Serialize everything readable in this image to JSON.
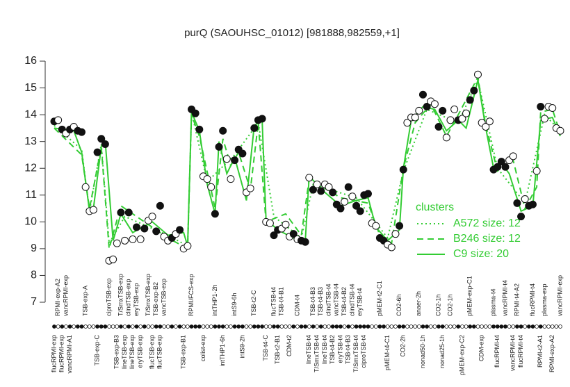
{
  "chart_data": {
    "type": "line",
    "title": "purQ (SAOUHSC_01012) [981888,982559,+1]",
    "ylim": [
      7,
      16
    ],
    "yticks": [
      7,
      8,
      9,
      10,
      11,
      12,
      13,
      14,
      15,
      16
    ],
    "categories": [
      "flucRPMI-exp",
      "RPMI-exp-A2",
      "flucRPMI-exp",
      "vancRPMI-exp",
      "vancRPMI-A1",
      null,
      null,
      null,
      "TSB-exp-A",
      null,
      null,
      "TSB-exp-C",
      null,
      null,
      "ciproTSB-exp",
      null,
      "TSB-exp-B3",
      "T/SmxTSB-exp",
      "lineTSB-exp",
      "clindTSB-exp",
      "lineTSB-exp",
      "eryTSB-exp",
      "eryTSB-exp",
      null,
      "T/SmxTSB-exp",
      "flucTSB-exp",
      "TSB-exp-B2",
      "flucTSB-exp",
      "vancTSB-exp",
      null,
      null,
      null,
      null,
      "TSB-exp-B1",
      null,
      "RPMI/FCS-exp",
      null,
      null,
      "colist-exp",
      null,
      null,
      "intTHP1-2h",
      null,
      "intTHP1-6h",
      null,
      null,
      "intS9-6h",
      null,
      "intS9-2h",
      null,
      null,
      "TSB-t2-C",
      null,
      null,
      "TSB-t4-C",
      null,
      "flucTSB-t4",
      "TSB-t2-B1",
      "TSB-t4-B1",
      null,
      "CDM-t2",
      null,
      "CDM-t4",
      null,
      null,
      "lineTSB-t4",
      "TSB-t4-B3",
      "T/SmxTSB-t4",
      "TSB-t4-B3",
      "lineTSB-t4",
      "clindTSB-t4",
      "TSB-t4-B2",
      "vancTSB-t4",
      "eryTSB-t4",
      "TSB-t4-B2",
      "TSB-t4-B3",
      "clindTSB-t4",
      "T/SmxTSB-t4",
      "eryTSB-t4",
      "ciproTSB-t4",
      null,
      null,
      null,
      "pMEM-t2-C1",
      null,
      "pMEM-t4-C1",
      null,
      null,
      "CO2-6h",
      "CO2-2h",
      null,
      null,
      null,
      "anaer-2h",
      "nonad50-1h",
      null,
      null,
      null,
      "CO2-1h",
      "nonad25-1h",
      null,
      "CO2-1h",
      null,
      null,
      "pMEM-exp-C2",
      null,
      "pMEM-exp-C1",
      null,
      null,
      "CDM-exp",
      null,
      null,
      "plasma-t4",
      "flucRPMI-t4",
      null,
      "vancRPMI-t4",
      null,
      "vancRPMI-t4",
      "RPMI-t4-A2",
      "flucRPMI-t4",
      null,
      null,
      "flucRPMI-t4",
      null,
      "RPMI-t2-A1",
      "plasma-exp",
      null,
      "RPMI-exp-A2",
      null,
      "vancRPMI-exp"
    ],
    "values": [
      13.75,
      13.8,
      13.45,
      13.3,
      13.45,
      13.55,
      13.4,
      13.35,
      11.3,
      10.4,
      10.45,
      12.6,
      13.1,
      12.9,
      8.55,
      8.6,
      9.2,
      10.35,
      9.3,
      10.35,
      9.35,
      9.8,
      9.35,
      9.75,
      10.05,
      10.2,
      9.65,
      10.6,
      9.45,
      9.3,
      9.4,
      9.55,
      9.7,
      9.0,
      9.1,
      14.2,
      14.05,
      13.45,
      11.7,
      11.6,
      11.3,
      10.3,
      12.8,
      13.4,
      12.35,
      11.6,
      12.3,
      12.7,
      12.55,
      11.1,
      11.25,
      13.5,
      13.8,
      13.85,
      10.0,
      9.95,
      9.5,
      9.7,
      9.75,
      9.9,
      9.45,
      9.55,
      9.35,
      9.3,
      9.25,
      11.65,
      11.2,
      11.4,
      11.15,
      11.4,
      11.3,
      11.1,
      10.65,
      10.5,
      10.75,
      11.3,
      10.95,
      10.6,
      10.4,
      11.0,
      11.05,
      9.95,
      9.85,
      9.4,
      9.3,
      9.15,
      9.05,
      9.55,
      9.85,
      11.95,
      13.7,
      13.9,
      13.9,
      14.15,
      14.75,
      14.3,
      14.5,
      14.4,
      13.55,
      14.15,
      13.15,
      13.8,
      14.2,
      13.8,
      13.85,
      14.05,
      14.55,
      14.9,
      15.5,
      13.7,
      13.55,
      13.75,
      11.95,
      12.05,
      12.25,
      12.05,
      12.3,
      12.45,
      10.7,
      10.2,
      10.85,
      10.6,
      10.65,
      11.9,
      14.3,
      13.85,
      14.3,
      14.25,
      13.5,
      13.4
    ],
    "filled": [
      true,
      false,
      true,
      false,
      true,
      false,
      true,
      true,
      false,
      false,
      false,
      true,
      true,
      true,
      false,
      false,
      false,
      true,
      false,
      true,
      false,
      true,
      false,
      true,
      false,
      false,
      true,
      true,
      false,
      false,
      true,
      false,
      true,
      false,
      false,
      true,
      true,
      true,
      false,
      false,
      false,
      true,
      true,
      true,
      false,
      false,
      true,
      true,
      true,
      false,
      false,
      true,
      true,
      true,
      false,
      false,
      true,
      true,
      false,
      false,
      false,
      true,
      false,
      true,
      true,
      false,
      true,
      false,
      true,
      false,
      false,
      true,
      true,
      true,
      false,
      true,
      false,
      true,
      true,
      true,
      true,
      false,
      false,
      true,
      true,
      false,
      false,
      false,
      true,
      true,
      false,
      false,
      false,
      false,
      true,
      true,
      false,
      false,
      true,
      true,
      false,
      false,
      false,
      true,
      false,
      false,
      true,
      true,
      false,
      false,
      false,
      false,
      true,
      true,
      true,
      true,
      false,
      false,
      true,
      true,
      false,
      true,
      true,
      false,
      true,
      false,
      false,
      false,
      false,
      false
    ],
    "legend_title": "clusters",
    "series": [
      {
        "name": "A572 size: 12",
        "color": "#33cc33",
        "line_style": "dotted",
        "x": [
          0,
          7,
          9,
          12,
          14,
          18,
          29,
          34,
          35,
          39,
          46,
          52,
          56,
          63,
          66,
          77,
          85,
          89,
          95,
          103,
          108,
          113,
          120,
          125,
          129
        ],
        "values": [
          13.6,
          12.7,
          10.4,
          12.9,
          9.2,
          10.2,
          9.5,
          9.1,
          14.1,
          11.5,
          12.5,
          13.7,
          10.2,
          9.4,
          11.4,
          10.9,
          9.4,
          11.9,
          14.2,
          13.7,
          15.3,
          12.0,
          10.7,
          14.0,
          13.4
        ]
      },
      {
        "name": "B246 size: 12",
        "color": "#33cc33",
        "line_style": "dashed",
        "x": [
          0,
          7,
          9,
          12,
          14,
          17,
          29,
          34,
          35,
          37,
          40,
          41,
          43,
          45,
          47,
          50,
          52,
          54,
          59,
          63,
          65,
          73,
          80,
          83,
          86,
          89,
          92,
          96,
          100,
          103,
          108,
          110,
          113,
          117,
          120,
          123,
          124,
          127,
          129
        ],
        "values": [
          13.5,
          12.5,
          10.5,
          12.8,
          9.0,
          10.6,
          9.4,
          9.0,
          14.0,
          13.2,
          11.2,
          10.5,
          13.1,
          12.1,
          12.6,
          11.2,
          13.7,
          10.0,
          10.3,
          9.5,
          11.6,
          10.9,
          10.7,
          9.5,
          9.2,
          12.0,
          13.7,
          14.4,
          13.2,
          14.0,
          15.4,
          13.6,
          11.9,
          12.3,
          10.5,
          11.3,
          14.1,
          14.2,
          13.3
        ]
      },
      {
        "name": "C9 size: 20",
        "color": "#33cc33",
        "line_style": "solid",
        "x": [
          0,
          5,
          7,
          9,
          10,
          12,
          13,
          15,
          17,
          20,
          25,
          29,
          33,
          34,
          35,
          37,
          39,
          41,
          42,
          44,
          46,
          49,
          51,
          53,
          54,
          57,
          61,
          64,
          65,
          69,
          73,
          77,
          80,
          82,
          85,
          88,
          89,
          91,
          94,
          97,
          100,
          103,
          105,
          108,
          110,
          112,
          114,
          116,
          119,
          122,
          124,
          127,
          129
        ],
        "values": [
          13.5,
          13.4,
          12.6,
          10.4,
          10.5,
          12.8,
          13.0,
          9.3,
          10.3,
          9.6,
          10.0,
          9.5,
          9.6,
          9.1,
          14.1,
          13.4,
          11.4,
          10.3,
          13.0,
          11.8,
          12.4,
          10.8,
          13.6,
          13.8,
          10.1,
          9.7,
          9.4,
          9.3,
          11.7,
          11.1,
          10.6,
          10.8,
          10.9,
          9.8,
          9.3,
          9.7,
          12.0,
          13.8,
          14.3,
          14.2,
          13.4,
          13.8,
          13.5,
          15.3,
          13.5,
          12.0,
          12.2,
          11.8,
          10.4,
          10.6,
          13.8,
          13.9,
          13.2
        ]
      }
    ]
  }
}
